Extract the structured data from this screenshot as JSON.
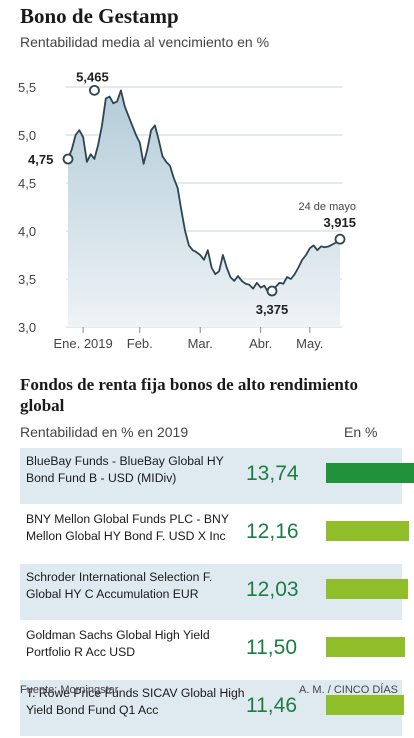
{
  "header": {
    "title": "Bono de Gestamp",
    "subtitle": "Rentabilidad media al vencimiento en %"
  },
  "chart_data": [
    {
      "type": "area",
      "title": "Bono de Gestamp",
      "subtitle": "Rentabilidad media al vencimiento en %",
      "xlabel": "",
      "ylabel": "",
      "ylim": [
        3.0,
        5.5
      ],
      "yticks": [
        "3,0",
        "3,5",
        "4,0",
        "4,5",
        "5,0",
        "5,5"
      ],
      "xticks": [
        "Ene. 2019",
        "Feb.",
        "Mar.",
        "Abr.",
        "May."
      ],
      "grid": true,
      "x": [
        0,
        2,
        4,
        6,
        8,
        10,
        12,
        14,
        16,
        18,
        20,
        22,
        24,
        26,
        28,
        30,
        32,
        34,
        36,
        38,
        40,
        42,
        44,
        46,
        48,
        50,
        52,
        54,
        56,
        58,
        60,
        62,
        64,
        66,
        68,
        70,
        72,
        74,
        76,
        78,
        80,
        82,
        84,
        86,
        88,
        90,
        92,
        94,
        96,
        98,
        100,
        102,
        104,
        106,
        108,
        110,
        112,
        114,
        116,
        118,
        120,
        122,
        124,
        126,
        128,
        130,
        132,
        134,
        136,
        138,
        140,
        142,
        144
      ],
      "y": [
        4.75,
        4.85,
        5.0,
        5.05,
        4.98,
        4.72,
        4.8,
        4.75,
        4.9,
        5.1,
        5.38,
        5.4,
        5.33,
        5.35,
        5.465,
        5.3,
        5.2,
        5.1,
        5.0,
        4.92,
        4.7,
        4.85,
        5.05,
        5.1,
        4.95,
        4.78,
        4.72,
        4.68,
        4.55,
        4.45,
        4.22,
        4.0,
        3.85,
        3.8,
        3.78,
        3.75,
        3.7,
        3.8,
        3.62,
        3.55,
        3.58,
        3.75,
        3.62,
        3.52,
        3.48,
        3.53,
        3.48,
        3.45,
        3.44,
        3.4,
        3.46,
        3.41,
        3.43,
        3.36,
        3.375,
        3.42,
        3.46,
        3.45,
        3.52,
        3.5,
        3.55,
        3.62,
        3.7,
        3.75,
        3.82,
        3.85,
        3.8,
        3.84,
        3.83,
        3.84,
        3.86,
        3.88,
        3.915
      ],
      "xtick_positions": [
        8,
        38,
        70,
        102,
        128
      ],
      "annotations": [
        {
          "label": "4,75",
          "x": 0,
          "y": 4.75
        },
        {
          "label": "5,465",
          "x": 14,
          "y": 5.465
        },
        {
          "label": "3,375",
          "x": 108,
          "y": 3.375
        },
        {
          "label": "24 de mayo",
          "x": 144,
          "y": 3.915
        },
        {
          "label": "3,915",
          "x": 144,
          "y": 3.915
        }
      ],
      "colors": {
        "line": "#2d4553",
        "fill_top": "#b3ccd8",
        "fill_bottom": "#eef3f6",
        "grid": "#c8d3d8"
      }
    },
    {
      "type": "bar",
      "title": "Fondos de renta fija bonos de alto rendimiento global",
      "subtitle": "Rentabilidad en % en 2019",
      "unit_label": "En %",
      "categories": [
        "BlueBay Funds - BlueBay Global HY Bond Fund B - USD (MIDiv)",
        "BNY Mellon Global Funds PLC - BNY Mellon Global HY Bond F. USD X Inc",
        "Schroder International Selection F. Global HY C Accumulation EUR",
        "Goldman Sachs Global High Yield Portfolio R Acc USD",
        "T. Rowe Price Funds SICAV Global High Yield Bond Fund Q1 Acc"
      ],
      "values": [
        13.74,
        12.16,
        12.03,
        11.5,
        11.46
      ],
      "value_labels": [
        "13,74",
        "12,16",
        "12,03",
        "11,50",
        "11,46"
      ],
      "colors": {
        "best": "#22913b",
        "other": "#8fbe2a",
        "value_text": "#1e7d44"
      }
    }
  ],
  "section2": {
    "title": "Fondos de renta fija bonos de alto rendimiento global",
    "subtitle": "Rentabilidad en % en 2019",
    "unit_label": "En %"
  },
  "footer": {
    "source": "Fuente: Morningstar",
    "credit": "A. M. / CINCO DÍAS"
  }
}
